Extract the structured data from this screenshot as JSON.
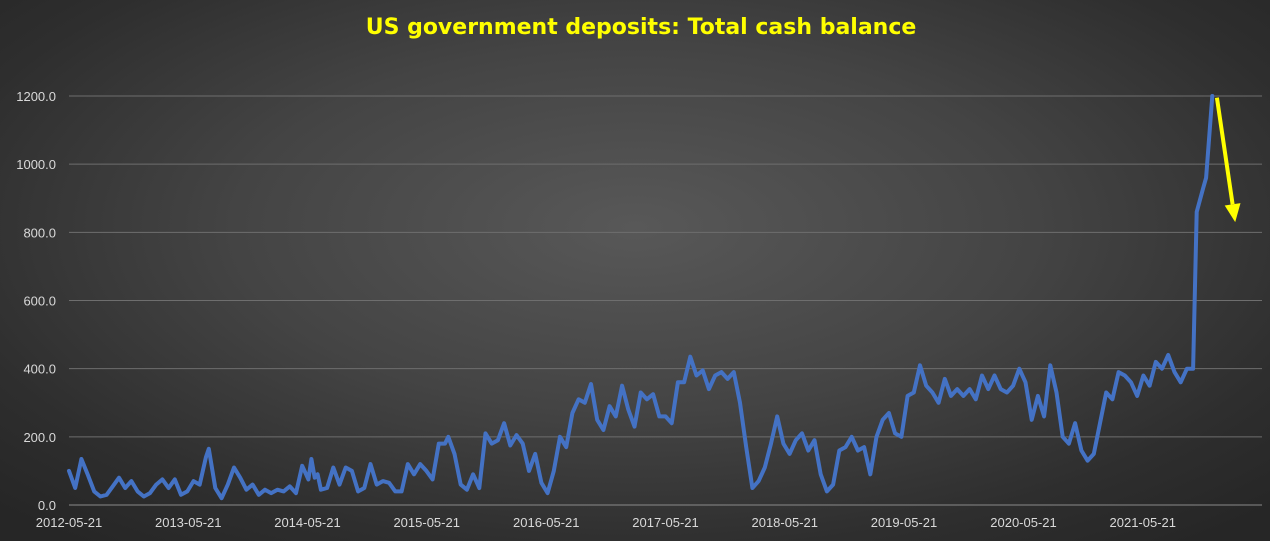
{
  "chart_data": {
    "type": "line",
    "title": "US government deposits: Total cash balance",
    "xlabel": "",
    "ylabel": "",
    "x_type": "date",
    "xlim": [
      "2012-05-21",
      "2022-05-21"
    ],
    "ylim": [
      0,
      1300
    ],
    "y_ticks": [
      "0.0",
      "200.0",
      "400.0",
      "600.0",
      "800.0",
      "1000.0",
      "1200.0"
    ],
    "x_ticks": [
      "2012-05-21",
      "2013-05-21",
      "2014-05-21",
      "2015-05-21",
      "2016-05-21",
      "2017-05-21",
      "2018-05-21",
      "2019-05-21",
      "2020-05-21",
      "2021-05-21"
    ],
    "grid": true,
    "legend": "none",
    "series": [
      {
        "color": "#4472c4",
        "points": [
          [
            "2012-05-21",
            100
          ],
          [
            "2012-06-09",
            50
          ],
          [
            "2012-06-28",
            135
          ],
          [
            "2012-07-17",
            90
          ],
          [
            "2012-08-06",
            40
          ],
          [
            "2012-08-25",
            25
          ],
          [
            "2012-09-13",
            30
          ],
          [
            "2012-10-02",
            55
          ],
          [
            "2012-10-21",
            80
          ],
          [
            "2012-11-09",
            50
          ],
          [
            "2012-11-28",
            70
          ],
          [
            "2012-12-17",
            40
          ],
          [
            "2013-01-05",
            25
          ],
          [
            "2013-01-24",
            35
          ],
          [
            "2013-02-12",
            60
          ],
          [
            "2013-03-03",
            75
          ],
          [
            "2013-03-22",
            50
          ],
          [
            "2013-04-10",
            75
          ],
          [
            "2013-04-29",
            30
          ],
          [
            "2013-05-18",
            40
          ],
          [
            "2013-06-06",
            70
          ],
          [
            "2013-06-25",
            60
          ],
          [
            "2013-07-14",
            140
          ],
          [
            "2013-07-23",
            165
          ],
          [
            "2013-08-12",
            50
          ],
          [
            "2013-08-31",
            20
          ],
          [
            "2013-09-19",
            60
          ],
          [
            "2013-10-08",
            110
          ],
          [
            "2013-10-27",
            80
          ],
          [
            "2013-11-15",
            45
          ],
          [
            "2013-12-04",
            60
          ],
          [
            "2013-12-23",
            30
          ],
          [
            "2014-01-11",
            45
          ],
          [
            "2014-01-30",
            35
          ],
          [
            "2014-02-18",
            45
          ],
          [
            "2014-03-09",
            40
          ],
          [
            "2014-03-28",
            55
          ],
          [
            "2014-04-16",
            35
          ],
          [
            "2014-05-05",
            115
          ],
          [
            "2014-05-24",
            75
          ],
          [
            "2014-06-02",
            135
          ],
          [
            "2014-06-12",
            80
          ],
          [
            "2014-06-21",
            90
          ],
          [
            "2014-07-01",
            45
          ],
          [
            "2014-07-20",
            50
          ],
          [
            "2014-08-08",
            110
          ],
          [
            "2014-08-27",
            60
          ],
          [
            "2014-09-15",
            110
          ],
          [
            "2014-10-04",
            100
          ],
          [
            "2014-10-23",
            40
          ],
          [
            "2014-11-11",
            50
          ],
          [
            "2014-11-30",
            120
          ],
          [
            "2014-12-19",
            60
          ],
          [
            "2015-01-07",
            70
          ],
          [
            "2015-01-26",
            65
          ],
          [
            "2015-02-14",
            40
          ],
          [
            "2015-03-05",
            40
          ],
          [
            "2015-03-24",
            120
          ],
          [
            "2015-04-12",
            90
          ],
          [
            "2015-05-01",
            120
          ],
          [
            "2015-05-20",
            100
          ],
          [
            "2015-06-08",
            75
          ],
          [
            "2015-06-27",
            180
          ],
          [
            "2015-07-16",
            180
          ],
          [
            "2015-07-26",
            200
          ],
          [
            "2015-08-14",
            150
          ],
          [
            "2015-09-02",
            60
          ],
          [
            "2015-09-21",
            45
          ],
          [
            "2015-10-10",
            90
          ],
          [
            "2015-10-29",
            50
          ],
          [
            "2015-11-17",
            210
          ],
          [
            "2015-12-06",
            180
          ],
          [
            "2015-12-25",
            190
          ],
          [
            "2016-01-13",
            240
          ],
          [
            "2016-02-01",
            175
          ],
          [
            "2016-02-20",
            205
          ],
          [
            "2016-03-10",
            180
          ],
          [
            "2016-03-29",
            100
          ],
          [
            "2016-04-17",
            150
          ],
          [
            "2016-05-06",
            65
          ],
          [
            "2016-05-25",
            35
          ],
          [
            "2016-06-13",
            100
          ],
          [
            "2016-07-02",
            200
          ],
          [
            "2016-07-21",
            170
          ],
          [
            "2016-08-09",
            270
          ],
          [
            "2016-08-28",
            310
          ],
          [
            "2016-09-16",
            300
          ],
          [
            "2016-10-05",
            355
          ],
          [
            "2016-10-24",
            250
          ],
          [
            "2016-11-12",
            220
          ],
          [
            "2016-12-01",
            290
          ],
          [
            "2016-12-20",
            260
          ],
          [
            "2017-01-08",
            350
          ],
          [
            "2017-01-27",
            280
          ],
          [
            "2017-02-15",
            230
          ],
          [
            "2017-03-06",
            330
          ],
          [
            "2017-03-25",
            310
          ],
          [
            "2017-04-13",
            325
          ],
          [
            "2017-05-02",
            260
          ],
          [
            "2017-05-21",
            260
          ],
          [
            "2017-06-09",
            240
          ],
          [
            "2017-06-28",
            360
          ],
          [
            "2017-07-17",
            360
          ],
          [
            "2017-08-05",
            435
          ],
          [
            "2017-08-24",
            380
          ],
          [
            "2017-09-12",
            395
          ],
          [
            "2017-10-01",
            340
          ],
          [
            "2017-10-20",
            380
          ],
          [
            "2017-11-08",
            390
          ],
          [
            "2017-11-27",
            370
          ],
          [
            "2017-12-16",
            390
          ],
          [
            "2018-01-04",
            300
          ],
          [
            "2018-01-23",
            170
          ],
          [
            "2018-02-11",
            50
          ],
          [
            "2018-03-02",
            70
          ],
          [
            "2018-03-21",
            110
          ],
          [
            "2018-04-09",
            180
          ],
          [
            "2018-04-28",
            260
          ],
          [
            "2018-05-17",
            180
          ],
          [
            "2018-06-05",
            150
          ],
          [
            "2018-06-24",
            190
          ],
          [
            "2018-07-13",
            210
          ],
          [
            "2018-08-01",
            160
          ],
          [
            "2018-08-20",
            190
          ],
          [
            "2018-09-08",
            90
          ],
          [
            "2018-09-27",
            40
          ],
          [
            "2018-10-16",
            60
          ],
          [
            "2018-11-04",
            160
          ],
          [
            "2018-11-23",
            170
          ],
          [
            "2018-12-12",
            200
          ],
          [
            "2018-12-31",
            160
          ],
          [
            "2019-01-19",
            170
          ],
          [
            "2019-02-07",
            90
          ],
          [
            "2019-02-26",
            200
          ],
          [
            "2019-03-17",
            250
          ],
          [
            "2019-04-05",
            270
          ],
          [
            "2019-04-24",
            210
          ],
          [
            "2019-05-13",
            200
          ],
          [
            "2019-06-01",
            320
          ],
          [
            "2019-06-20",
            330
          ],
          [
            "2019-07-09",
            410
          ],
          [
            "2019-07-28",
            350
          ],
          [
            "2019-08-16",
            330
          ],
          [
            "2019-09-04",
            300
          ],
          [
            "2019-09-23",
            370
          ],
          [
            "2019-10-12",
            320
          ],
          [
            "2019-10-31",
            340
          ],
          [
            "2019-11-19",
            320
          ],
          [
            "2019-12-08",
            340
          ],
          [
            "2019-12-27",
            310
          ],
          [
            "2020-01-15",
            380
          ],
          [
            "2020-02-03",
            340
          ],
          [
            "2020-02-22",
            380
          ],
          [
            "2020-03-12",
            340
          ],
          [
            "2020-03-31",
            330
          ],
          [
            "2020-04-19",
            350
          ],
          [
            "2020-05-08",
            400
          ],
          [
            "2020-05-27",
            360
          ],
          [
            "2020-06-15",
            250
          ],
          [
            "2020-07-04",
            320
          ],
          [
            "2020-07-23",
            260
          ],
          [
            "2020-08-11",
            410
          ],
          [
            "2020-08-30",
            330
          ],
          [
            "2020-09-18",
            200
          ],
          [
            "2020-10-07",
            180
          ],
          [
            "2020-10-26",
            240
          ],
          [
            "2020-11-14",
            160
          ],
          [
            "2020-12-03",
            130
          ],
          [
            "2020-12-22",
            150
          ],
          [
            "2021-01-10",
            240
          ],
          [
            "2021-01-29",
            330
          ],
          [
            "2021-02-17",
            310
          ],
          [
            "2021-03-08",
            390
          ],
          [
            "2021-03-27",
            380
          ],
          [
            "2021-04-15",
            360
          ],
          [
            "2021-05-04",
            320
          ],
          [
            "2021-05-23",
            380
          ],
          [
            "2021-06-11",
            350
          ],
          [
            "2021-06-30",
            420
          ],
          [
            "2021-07-19",
            400
          ],
          [
            "2021-08-07",
            440
          ],
          [
            "2021-08-26",
            390
          ],
          [
            "2021-09-14",
            360
          ],
          [
            "2021-10-03",
            400
          ],
          [
            "2021-10-22",
            400
          ],
          [
            "2021-11-02",
            860
          ],
          [
            "2021-11-22",
            930
          ],
          [
            "2021-12-01",
            960
          ],
          [
            "2021-12-20",
            1200
          ]
        ]
      }
    ],
    "annotations": [
      {
        "type": "arrow",
        "color": "#ffff00",
        "from": [
          "2022-01-03",
          1195
        ],
        "to": [
          "2022-02-28",
          830
        ]
      }
    ]
  }
}
